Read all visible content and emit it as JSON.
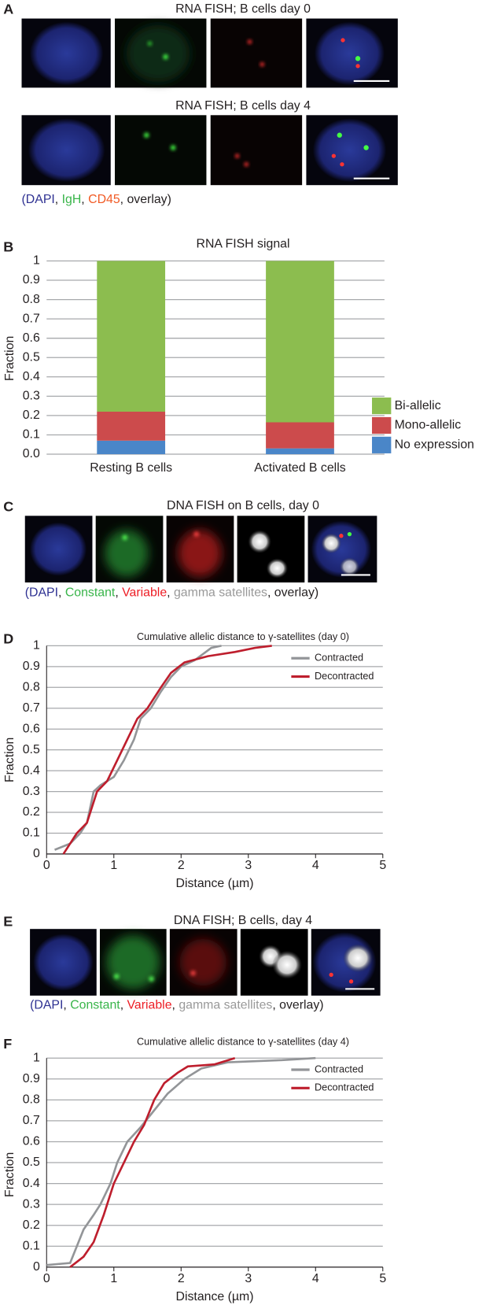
{
  "panels": {
    "a": {
      "letter": "A",
      "titles": [
        "RNA FISH; B cells day 0",
        "RNA FISH; B cells day 4"
      ],
      "caption": [
        {
          "text": "(DAPI",
          "color": "#2e3192"
        },
        {
          "text": ", ",
          "color": "#231f20"
        },
        {
          "text": "IgH",
          "color": "#39b54a"
        },
        {
          "text": ", ",
          "color": "#231f20"
        },
        {
          "text": "CD45",
          "color": "#f15a24"
        },
        {
          "text": ", overlay)",
          "color": "#231f20"
        }
      ]
    },
    "b": {
      "letter": "B"
    },
    "c": {
      "letter": "C",
      "title": "DNA FISH on B cells, day 0",
      "caption": [
        {
          "text": "(DAPI",
          "color": "#2e3192"
        },
        {
          "text": ", ",
          "color": "#231f20"
        },
        {
          "text": "Constant",
          "color": "#39b54a"
        },
        {
          "text": ", ",
          "color": "#231f20"
        },
        {
          "text": "Variable",
          "color": "#ed1c24"
        },
        {
          "text": ", ",
          "color": "#231f20"
        },
        {
          "text": "gamma satellites",
          "color": "#999999"
        },
        {
          "text": ", overlay)",
          "color": "#231f20"
        }
      ]
    },
    "d": {
      "letter": "D"
    },
    "e": {
      "letter": "E",
      "title": "DNA FISH; B cells, day 4",
      "caption": [
        {
          "text": "(DAPI",
          "color": "#2e3192"
        },
        {
          "text": ", ",
          "color": "#231f20"
        },
        {
          "text": "Constant",
          "color": "#39b54a"
        },
        {
          "text": ", ",
          "color": "#231f20"
        },
        {
          "text": "Variable",
          "color": "#ed1c24"
        },
        {
          "text": ", ",
          "color": "#231f20"
        },
        {
          "text": "gamma satellites",
          "color": "#999999"
        },
        {
          "text": ", overlay)",
          "color": "#231f20"
        }
      ]
    },
    "f": {
      "letter": "F"
    }
  },
  "chart_data": [
    {
      "type": "bar",
      "stacked": true,
      "title": "RNA FISH signal",
      "y_label": "Fraction",
      "categories": [
        "Resting B cells",
        "Activated B cells"
      ],
      "series": [
        {
          "name": "No expression",
          "color": "#4a86c8",
          "values": [
            0.07,
            0.03
          ]
        },
        {
          "name": "Mono-allelic",
          "color": "#cc4b4c",
          "values": [
            0.15,
            0.135
          ]
        },
        {
          "name": "Bi-allelic",
          "color": "#8cbd4f",
          "values": [
            0.78,
            0.835
          ]
        }
      ],
      "ylim": [
        0,
        1
      ],
      "yticks": [
        {
          "value": 0,
          "label": "0.0"
        },
        0.1,
        0.2,
        0.3,
        0.4,
        0.5,
        0.6,
        0.7,
        0.8,
        0.9,
        1
      ],
      "grid": true
    },
    {
      "type": "line",
      "title": "Cumulative allelic distance to γ-satellites (day 0)",
      "x_label": "Distance (µm)",
      "y_label": "Fraction",
      "series": [
        {
          "name": "Contracted",
          "color": "#939598",
          "x": [
            0.12,
            0.35,
            0.5,
            0.6,
            0.7,
            0.8,
            1.0,
            1.15,
            1.3,
            1.4,
            1.55,
            1.7,
            1.85,
            2.0,
            2.2,
            2.45,
            2.6
          ],
          "values": [
            0.02,
            0.05,
            0.1,
            0.15,
            0.3,
            0.33,
            0.37,
            0.45,
            0.55,
            0.65,
            0.7,
            0.78,
            0.85,
            0.9,
            0.93,
            0.99,
            1
          ]
        },
        {
          "name": "Decontracted",
          "color": "#be1e2d",
          "x": [
            0.25,
            0.35,
            0.45,
            0.6,
            0.75,
            0.9,
            1.05,
            1.2,
            1.35,
            1.5,
            1.7,
            1.85,
            2.05,
            2.4,
            2.8,
            3.1,
            3.35
          ],
          "values": [
            0,
            0.05,
            0.1,
            0.15,
            0.3,
            0.35,
            0.45,
            0.55,
            0.65,
            0.7,
            0.8,
            0.87,
            0.92,
            0.95,
            0.97,
            0.99,
            1
          ]
        }
      ],
      "xlim": [
        0,
        5
      ],
      "xticks": [
        0,
        1,
        2,
        3,
        4,
        5
      ],
      "ylim": [
        0,
        1
      ],
      "yticks": [
        0,
        0.1,
        0.2,
        0.3,
        0.4,
        0.5,
        0.6,
        0.7,
        0.8,
        0.9,
        1
      ],
      "grid": true
    },
    {
      "type": "line",
      "title": "Cumulative allelic distance to γ-satellites (day 4)",
      "x_label": "Distance (µm)",
      "y_label": "Fraction",
      "series": [
        {
          "name": "Contracted",
          "color": "#939598",
          "x": [
            0,
            0.35,
            0.45,
            0.55,
            0.7,
            0.8,
            0.95,
            1.05,
            1.2,
            1.4,
            1.6,
            1.8,
            2.05,
            2.3,
            2.7,
            3.5,
            4.0
          ],
          "values": [
            0.01,
            0.02,
            0.1,
            0.18,
            0.25,
            0.3,
            0.4,
            0.5,
            0.6,
            0.67,
            0.75,
            0.83,
            0.9,
            0.95,
            0.98,
            0.99,
            1
          ]
        },
        {
          "name": "Decontracted",
          "color": "#be1e2d",
          "x": [
            0.35,
            0.55,
            0.7,
            0.85,
            1.0,
            1.15,
            1.3,
            1.45,
            1.6,
            1.75,
            1.95,
            2.1,
            2.5,
            2.8
          ],
          "values": [
            0,
            0.05,
            0.12,
            0.25,
            0.4,
            0.5,
            0.6,
            0.68,
            0.8,
            0.88,
            0.93,
            0.96,
            0.97,
            1
          ]
        }
      ],
      "xlim": [
        0,
        5
      ],
      "xticks": [
        0,
        1,
        2,
        3,
        4,
        5
      ],
      "ylim": [
        0,
        1
      ],
      "yticks": [
        0,
        0.1,
        0.2,
        0.3,
        0.4,
        0.5,
        0.6,
        0.7,
        0.8,
        0.9,
        1
      ],
      "grid": true
    }
  ]
}
